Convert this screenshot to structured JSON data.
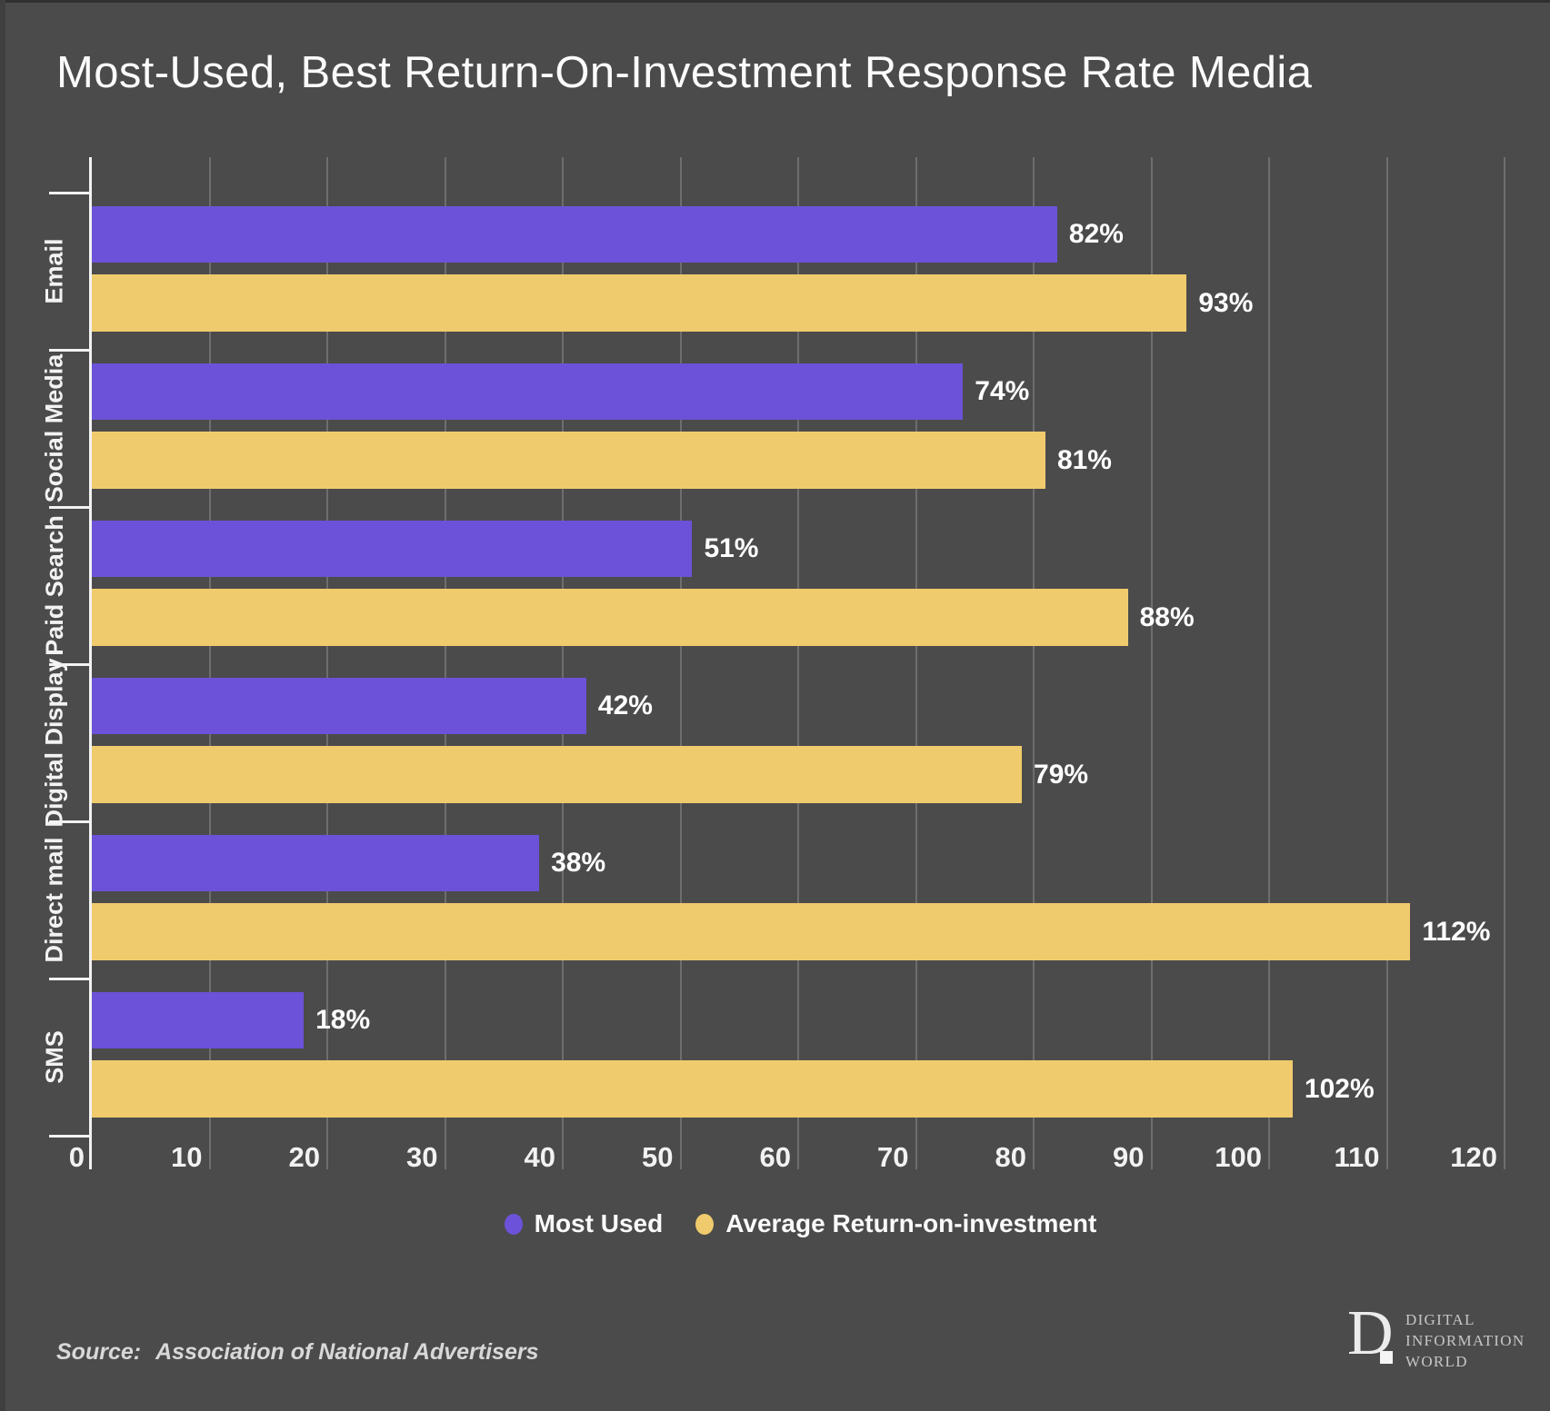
{
  "chart_data": {
    "type": "bar",
    "orientation": "horizontal",
    "title": "Most-Used, Best Return-On-Investment Response Rate Media",
    "categories": [
      "Email",
      "Social Media",
      "Paid Search",
      "Digital Display",
      "Direct mail",
      "SMS"
    ],
    "series": [
      {
        "name": "Most Used",
        "color": "#6C52D8",
        "values": [
          82,
          74,
          51,
          42,
          38,
          18
        ]
      },
      {
        "name": "Average Return-on-investment",
        "color": "#F0CB6D",
        "values": [
          93,
          81,
          88,
          79,
          112,
          102
        ]
      }
    ],
    "value_suffix": "%",
    "xlim": [
      0,
      120
    ],
    "x_ticks": [
      0,
      10,
      20,
      30,
      40,
      50,
      60,
      70,
      80,
      90,
      100,
      110,
      120
    ],
    "grid": "vertical",
    "legend_position": "bottom",
    "background_color": "#4b4b4b",
    "gridline_color": "#6e6e6e",
    "axis_color": "#f2f2f2",
    "label_color": "#ffffff"
  },
  "source": {
    "label": "Source:",
    "text": "Association of National Advertisers"
  },
  "logo": {
    "monogram": "D",
    "lines": [
      "DIGITAL",
      "INFORMATION",
      "WORLD"
    ]
  }
}
